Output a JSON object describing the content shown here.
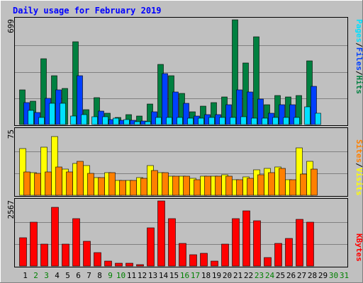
{
  "title": "Daily usage for February 2019",
  "colors": {
    "background": "#C0C0C0",
    "panel": "#C0C0C0",
    "title": "#0000FF",
    "grid": "#808080",
    "hits": "#008040",
    "files": "#0040FF",
    "pages": "#00E0FF",
    "visits": "#FFFF00",
    "sites": "#FF8000",
    "kbytes": "#FF0000",
    "day_weekday": "#000000",
    "day_weekend": "#008000"
  },
  "chart_data": [
    {
      "type": "bar",
      "panel": "hits-files-pages",
      "ymax": 699,
      "ymax_label": "699",
      "legend": [
        "Pages",
        "Files",
        "Hits"
      ],
      "categories": [
        "1",
        "2",
        "3",
        "4",
        "5",
        "6",
        "7",
        "8",
        "9",
        "10",
        "11",
        "12",
        "13",
        "14",
        "15",
        "16",
        "17",
        "18",
        "19",
        "20",
        "21",
        "22",
        "23",
        "24",
        "25",
        "26",
        "27",
        "28",
        "29",
        "30",
        "31"
      ],
      "series": [
        {
          "name": "Hits",
          "values": [
            230,
            155,
            435,
            325,
            240,
            550,
            100,
            180,
            75,
            45,
            65,
            55,
            135,
            400,
            325,
            205,
            85,
            120,
            145,
            185,
            695,
            410,
            580,
            130,
            190,
            185,
            190,
            420,
            0,
            0,
            0
          ]
        },
        {
          "name": "Files",
          "values": [
            145,
            80,
            175,
            230,
            0,
            325,
            0,
            90,
            35,
            30,
            30,
            25,
            85,
            340,
            215,
            140,
            55,
            65,
            65,
            130,
            230,
            215,
            170,
            75,
            130,
            130,
            0,
            255,
            0,
            0,
            0
          ]
        },
        {
          "name": "Pages",
          "values": [
            95,
            45,
            140,
            140,
            55,
            65,
            50,
            50,
            40,
            35,
            20,
            20,
            45,
            45,
            45,
            40,
            40,
            45,
            45,
            45,
            50,
            40,
            40,
            45,
            45,
            45,
            115,
            75,
            0,
            0,
            0
          ]
        }
      ]
    },
    {
      "type": "bar",
      "panel": "visits-sites",
      "ymax": 75,
      "ymax_label": "75",
      "legend": [
        "Sites",
        "Visits"
      ],
      "categories": [
        "1",
        "2",
        "3",
        "4",
        "5",
        "6",
        "7",
        "8",
        "9",
        "10",
        "11",
        "12",
        "13",
        "14",
        "15",
        "16",
        "17",
        "18",
        "19",
        "20",
        "21",
        "22",
        "23",
        "24",
        "25",
        "26",
        "27",
        "28",
        "29",
        "30",
        "31"
      ],
      "series": [
        {
          "name": "Visits",
          "values": [
            53,
            26,
            55,
            67,
            30,
            36,
            34,
            20,
            26,
            17,
            17,
            20,
            34,
            26,
            22,
            22,
            19,
            22,
            22,
            23,
            18,
            21,
            29,
            31,
            32,
            18,
            54,
            39,
            0,
            0,
            0
          ]
        },
        {
          "name": "Sites",
          "values": [
            27,
            25,
            27,
            32,
            27,
            39,
            25,
            20,
            26,
            17,
            17,
            19,
            28,
            26,
            22,
            22,
            18,
            22,
            22,
            22,
            18,
            19,
            23,
            26,
            31,
            18,
            24,
            30,
            0,
            0,
            0
          ]
        }
      ]
    },
    {
      "type": "bar",
      "panel": "kbytes",
      "ymax": 2567,
      "ymax_label": "2567",
      "legend": [
        "KBytes"
      ],
      "categories": [
        "1",
        "2",
        "3",
        "4",
        "5",
        "6",
        "7",
        "8",
        "9",
        "10",
        "11",
        "12",
        "13",
        "14",
        "15",
        "16",
        "17",
        "18",
        "19",
        "20",
        "21",
        "22",
        "23",
        "24",
        "25",
        "26",
        "27",
        "28",
        "29",
        "30",
        "31"
      ],
      "series": [
        {
          "name": "KBytes",
          "values": [
            1100,
            1720,
            860,
            2300,
            860,
            1860,
            970,
            530,
            180,
            110,
            110,
            50,
            1480,
            2530,
            1860,
            890,
            430,
            510,
            200,
            860,
            1850,
            2160,
            1780,
            330,
            870,
            1080,
            1830,
            1720,
            0,
            0,
            0
          ]
        }
      ]
    }
  ],
  "x_labels": [
    "1",
    "2",
    "3",
    "4",
    "5",
    "6",
    "7",
    "8",
    "9",
    "10",
    "11",
    "12",
    "13",
    "14",
    "15",
    "16",
    "17",
    "18",
    "19",
    "20",
    "21",
    "22",
    "23",
    "24",
    "25",
    "26",
    "27",
    "28",
    "29",
    "30",
    "31"
  ],
  "weekend_days": [
    "2",
    "3",
    "9",
    "10",
    "16",
    "17",
    "23",
    "24",
    "30",
    "31"
  ]
}
